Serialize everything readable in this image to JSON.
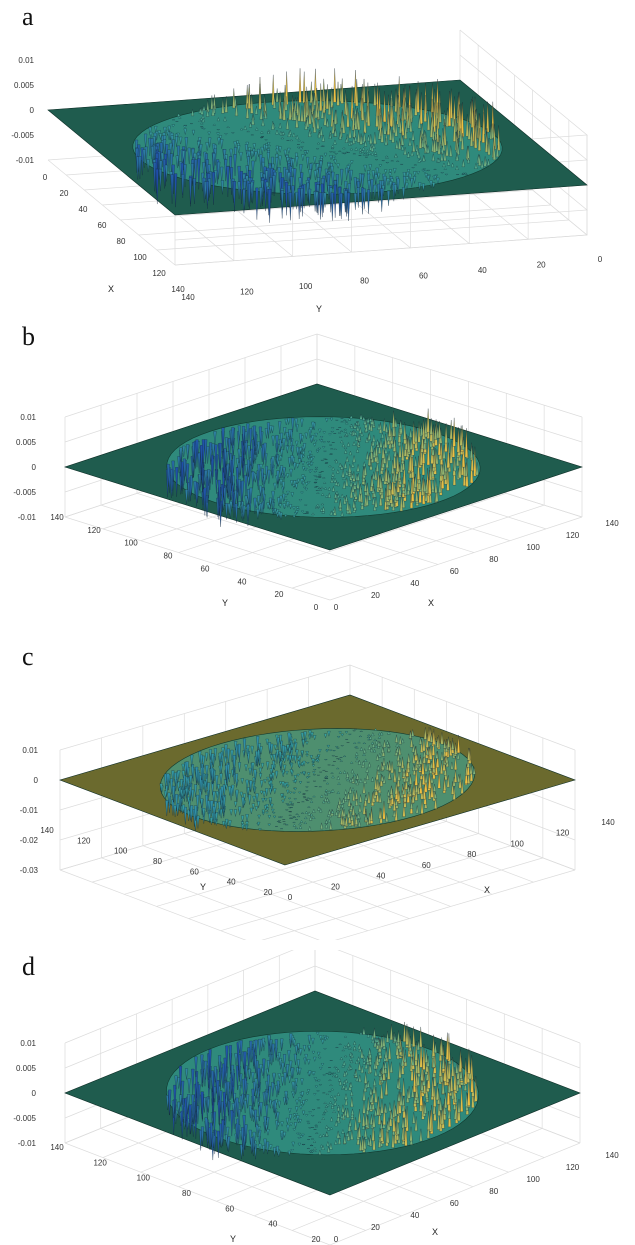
{
  "chart_data": [
    {
      "type": "surface",
      "panel_label": "a",
      "xlabel": "X",
      "ylabel": "Y",
      "zlabel": "",
      "xlim": [
        0,
        140
      ],
      "ylim": [
        0,
        140
      ],
      "zlim": [
        -0.01,
        0.01
      ],
      "x_ticks": [
        "0",
        "20",
        "40",
        "60",
        "80",
        "100",
        "120",
        "140"
      ],
      "y_ticks": [
        "0",
        "20",
        "40",
        "60",
        "80",
        "100",
        "120",
        "140"
      ],
      "z_ticks": [
        "0.01",
        "0.005",
        "0",
        "-0.005",
        "-0.01"
      ],
      "grid": true,
      "colormap": "parula",
      "floor_color": "#1f5c4e",
      "high_color": "#f0c040",
      "low_color": "#1f4ea8",
      "description_values": {
        "circle_center": [
          70,
          70
        ],
        "circle_radius": 60,
        "peak_amplitude": 0.007
      }
    },
    {
      "type": "surface",
      "panel_label": "b",
      "xlabel": "X",
      "ylabel": "Y",
      "zlabel": "",
      "xlim": [
        0,
        140
      ],
      "ylim": [
        0,
        140
      ],
      "zlim": [
        -0.01,
        0.01
      ],
      "x_ticks": [
        "0",
        "20",
        "40",
        "60",
        "80",
        "100",
        "120",
        "140"
      ],
      "y_ticks": [
        "0",
        "20",
        "40",
        "60",
        "80",
        "100",
        "120",
        "140"
      ],
      "z_ticks": [
        "0.01",
        "0.005",
        "0",
        "-0.005",
        "-0.01"
      ],
      "grid": true,
      "colormap": "parula",
      "floor_color": "#1f5c4e",
      "high_color": "#f0c040",
      "low_color": "#1f4ea8",
      "description_values": {
        "circle_center": [
          70,
          70
        ],
        "circle_radius": 60,
        "peak_amplitude": 0.006
      }
    },
    {
      "type": "surface",
      "panel_label": "c",
      "xlabel": "X",
      "ylabel": "Y",
      "zlabel": "",
      "xlim": [
        0,
        140
      ],
      "ylim": [
        0,
        140
      ],
      "zlim": [
        -0.03,
        0.01
      ],
      "x_ticks": [
        "0",
        "20",
        "40",
        "60",
        "80",
        "100",
        "120",
        "140"
      ],
      "y_ticks": [
        "20",
        "40",
        "60",
        "80",
        "100",
        "120",
        "140"
      ],
      "z_ticks": [
        "0.01",
        "0",
        "-0.01",
        "-0.02",
        "-0.03"
      ],
      "grid": true,
      "colormap": "parula",
      "floor_color": "#6b6a2e",
      "high_color": "#f0c040",
      "low_color": "#2f8ca8",
      "description_values": {
        "circle_center": [
          70,
          70
        ],
        "circle_radius": 60,
        "peak_amplitude": 0.006
      }
    },
    {
      "type": "surface",
      "panel_label": "d",
      "xlabel": "X",
      "ylabel": "Y",
      "zlabel": "",
      "xlim": [
        0,
        140
      ],
      "ylim": [
        0,
        140
      ],
      "zlim": [
        -0.01,
        0.01
      ],
      "x_ticks": [
        "0",
        "20",
        "40",
        "60",
        "80",
        "100",
        "120",
        "140"
      ],
      "y_ticks": [
        "20",
        "40",
        "60",
        "80",
        "100",
        "120",
        "140"
      ],
      "z_ticks": [
        "0.01",
        "0.005",
        "0",
        "-0.005",
        "-0.01"
      ],
      "grid": true,
      "colormap": "parula",
      "floor_color": "#1f5c4e",
      "high_color": "#f0c040",
      "low_color": "#1f4ea8",
      "description_values": {
        "circle_center": [
          70,
          70
        ],
        "circle_radius": 60,
        "peak_amplitude": 0.006
      }
    }
  ]
}
